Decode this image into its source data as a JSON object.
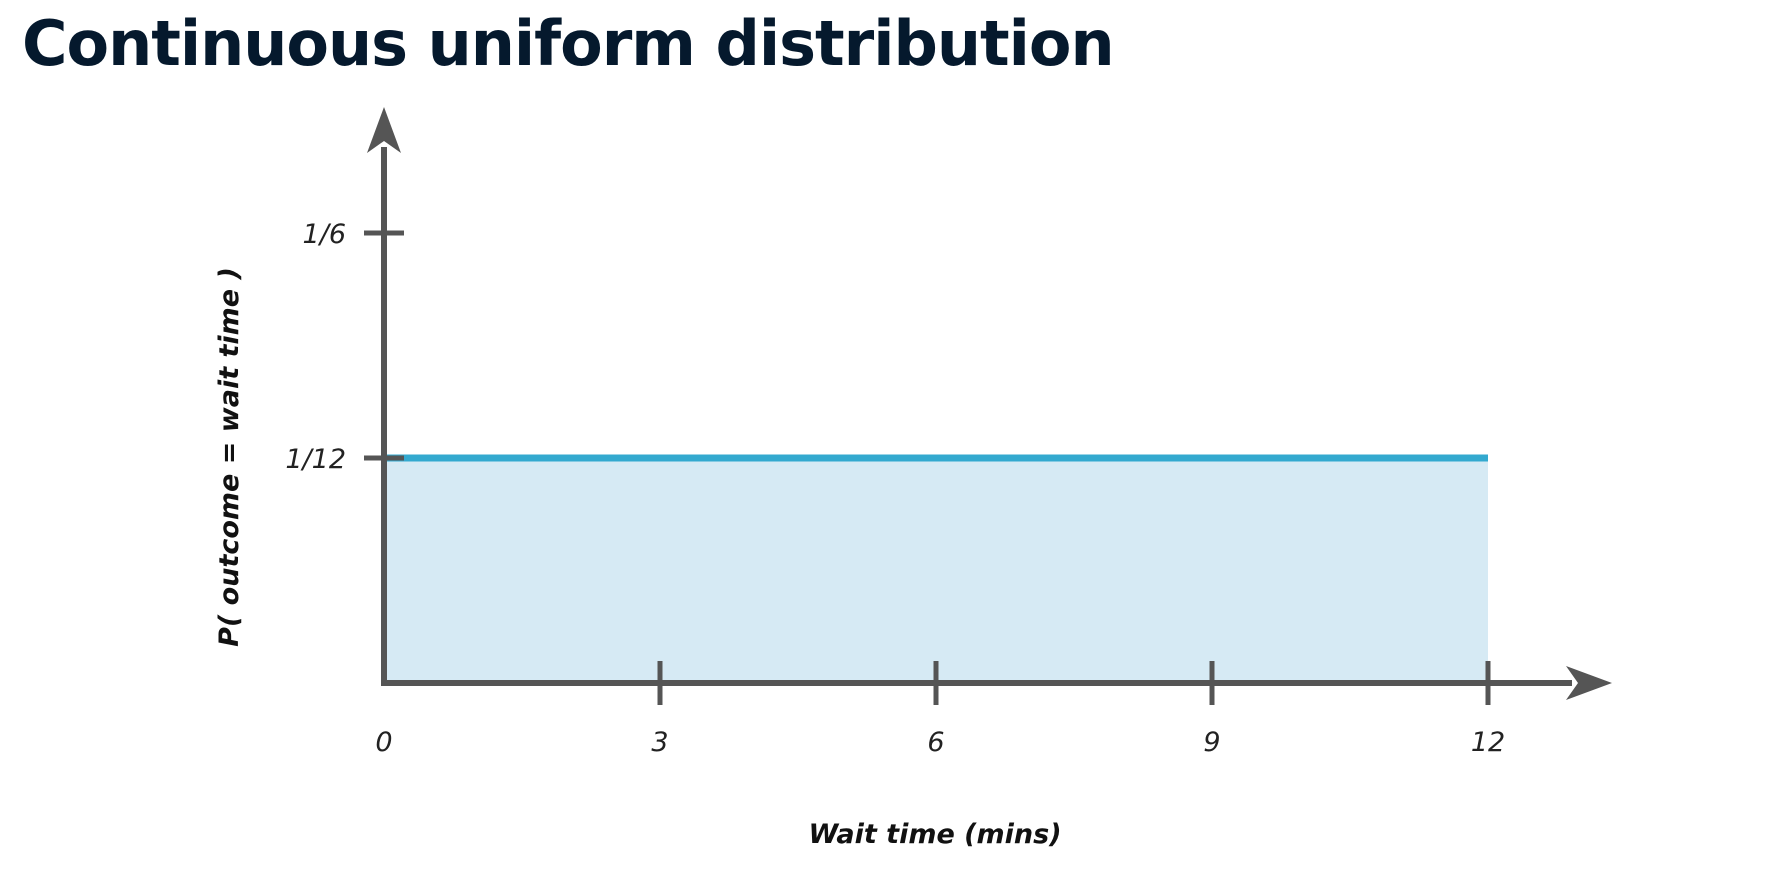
{
  "page": {
    "title": "Continuous uniform distribution"
  },
  "chart_data": {
    "type": "area",
    "xlabel": "Wait time (mins)",
    "ylabel": "P( outcome = wait time )",
    "x_ticks": [
      {
        "value": 0,
        "label": "0"
      },
      {
        "value": 3,
        "label": "3"
      },
      {
        "value": 6,
        "label": "6"
      },
      {
        "value": 9,
        "label": "9"
      },
      {
        "value": 12,
        "label": "12"
      }
    ],
    "y_ticks": [
      {
        "value": 0.08333,
        "label": "1/12"
      },
      {
        "value": 0.16667,
        "label": "1/6"
      }
    ],
    "series": [
      {
        "x": [
          0,
          12
        ],
        "y": [
          0.08333,
          0.08333
        ]
      }
    ],
    "xlim": [
      0,
      13.3
    ],
    "ylim": [
      0,
      0.205
    ],
    "grid": false,
    "colors": {
      "line": "#33a9cf",
      "fill": "#d6eaf4",
      "axis": "#555555"
    }
  }
}
